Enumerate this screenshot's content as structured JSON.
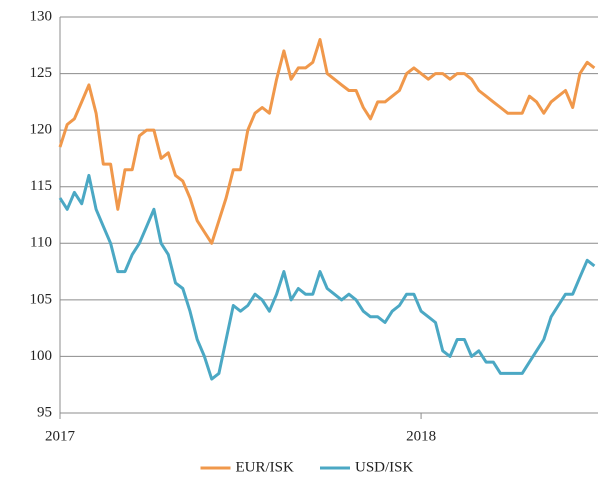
{
  "chart_data": {
    "type": "line",
    "x": [
      2017,
      2017.02,
      2017.04,
      2017.06,
      2017.08,
      2017.1,
      2017.12,
      2017.14,
      2017.16,
      2017.18,
      2017.2,
      2017.22,
      2017.24,
      2017.26,
      2017.28,
      2017.3,
      2017.32,
      2017.34,
      2017.36,
      2017.38,
      2017.4,
      2017.42,
      2017.44,
      2017.46,
      2017.48,
      2017.5,
      2017.52,
      2017.54,
      2017.56,
      2017.58,
      2017.6,
      2017.62,
      2017.64,
      2017.66,
      2017.68,
      2017.7,
      2017.72,
      2017.74,
      2017.76,
      2017.78,
      2017.8,
      2017.82,
      2017.84,
      2017.86,
      2017.88,
      2017.9,
      2017.92,
      2017.94,
      2017.96,
      2017.98,
      2018,
      2018.02,
      2018.04,
      2018.06,
      2018.08,
      2018.1,
      2018.12,
      2018.14,
      2018.16,
      2018.18,
      2018.2,
      2018.22,
      2018.24,
      2018.26,
      2018.28,
      2018.3,
      2018.32,
      2018.34,
      2018.36,
      2018.38,
      2018.4,
      2018.42,
      2018.44,
      2018.46,
      2018.48
    ],
    "series": [
      {
        "name": "EUR/ISK",
        "color": "#f0984b",
        "values": [
          118.5,
          120.5,
          121,
          122.5,
          124,
          121.5,
          117,
          117,
          113,
          116.5,
          116.5,
          119.5,
          120,
          120,
          117.5,
          118,
          116,
          115.5,
          114,
          112,
          111,
          110,
          112,
          114,
          116.5,
          116.5,
          120,
          121.5,
          122,
          121.5,
          124.5,
          127,
          124.5,
          125.5,
          125.5,
          126,
          128,
          125,
          124.5,
          124,
          123.5,
          123.5,
          122,
          121,
          122.5,
          122.5,
          123,
          123.5,
          125,
          125.5,
          125,
          124.5,
          125,
          125,
          124.5,
          125,
          125,
          124.5,
          123.5,
          123,
          122.5,
          122,
          121.5,
          121.5,
          121.5,
          123,
          122.5,
          121.5,
          122.5,
          123,
          123.5,
          122,
          125,
          126,
          125.5
        ]
      },
      {
        "name": "USD/ISK",
        "color": "#4ba8c4",
        "values": [
          114,
          113,
          114.5,
          113.5,
          116,
          113,
          111.5,
          110,
          107.5,
          107.5,
          109,
          110,
          111.5,
          113,
          110,
          109,
          106.5,
          106,
          104,
          101.5,
          100,
          98,
          98.5,
          101.5,
          104.5,
          104,
          104.5,
          105.5,
          105,
          104,
          105.5,
          107.5,
          105,
          106,
          105.5,
          105.5,
          107.5,
          106,
          105.5,
          105,
          105.5,
          105,
          104,
          103.5,
          103.5,
          103,
          104,
          104.5,
          105.5,
          105.5,
          104,
          103.5,
          103,
          100.5,
          100,
          101.5,
          101.5,
          100,
          100.5,
          99.5,
          99.5,
          98.5,
          98.5,
          98.5,
          98.5,
          99.5,
          100.5,
          101.5,
          103.5,
          104.5,
          105.5,
          105.5,
          107,
          108.5,
          108
        ]
      }
    ],
    "xlim": [
      2017,
      2018.49
    ],
    "xticks": [
      2017,
      2018
    ],
    "ylim": [
      95,
      130
    ],
    "yticks": [
      95,
      100,
      105,
      110,
      115,
      120,
      125,
      130
    ],
    "grid": true,
    "legend": "bottom"
  }
}
